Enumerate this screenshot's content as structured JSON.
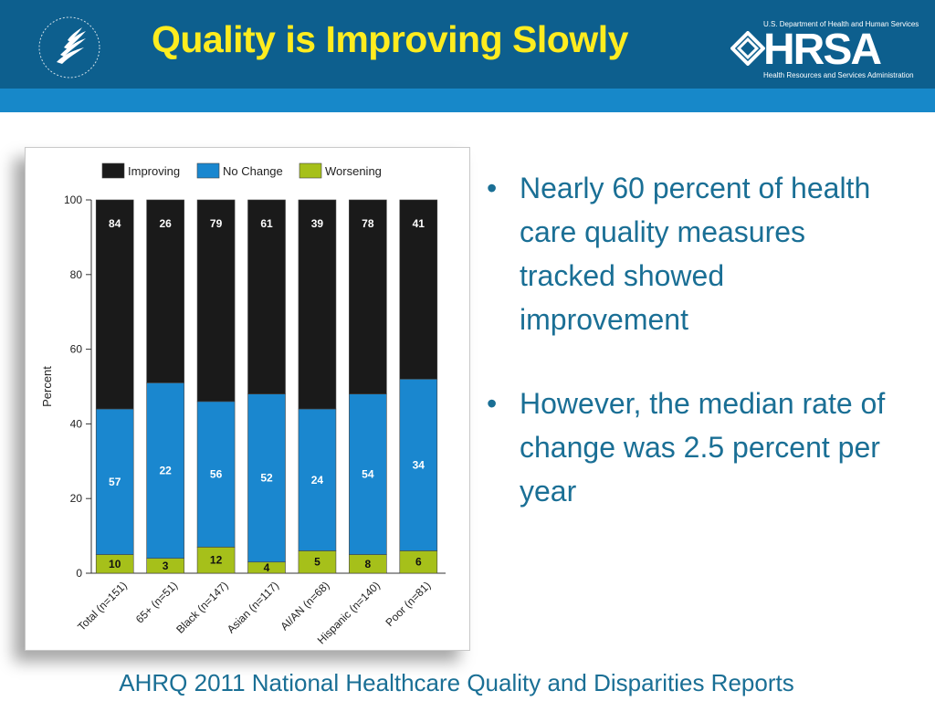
{
  "slide": {
    "title": "Quality is Improving Slowly",
    "hrsa": {
      "top_text": "U.S. Department of Health and Human Services",
      "name": "HRSA",
      "bottom_text": "Health Resources and Services Administration"
    },
    "bullets": [
      "Nearly 60 percent of health care quality measures tracked showed improvement",
      "However, the median rate of change was 2.5 percent per year"
    ],
    "footer": "AHRQ 2011 National Healthcare Quality and Disparities Reports",
    "bullet_glyph": "•"
  },
  "colors": {
    "header_dark": "#0d5f8e",
    "header_stripe": "#1788c9",
    "title": "#ffec1f",
    "text": "#1a6f95"
  },
  "chart_data": {
    "type": "bar",
    "stacked": true,
    "categories": [
      "Total (n=151)",
      "65+ (n=51)",
      "Black (n=147)",
      "Asian (n=117)",
      "AI/AN (n=68)",
      "Hispanic (n=140)",
      "Poor (n=81)"
    ],
    "series": [
      {
        "name": "Worsening",
        "color": "#a6c01a",
        "values": [
          5,
          4,
          7,
          3,
          6,
          5,
          6
        ],
        "labels": [
          "10",
          "3",
          "12",
          "4",
          "5",
          "8",
          "6"
        ]
      },
      {
        "name": "No Change",
        "color": "#1a87cf",
        "values": [
          39,
          47,
          39,
          45,
          38,
          43,
          46
        ],
        "labels": [
          "57",
          "22",
          "56",
          "52",
          "24",
          "54",
          "34"
        ]
      },
      {
        "name": "Improving",
        "color": "#1a1a1a",
        "values": [
          56,
          49,
          54,
          52,
          56,
          52,
          48
        ],
        "labels": [
          "84",
          "26",
          "79",
          "61",
          "39",
          "78",
          "41"
        ]
      }
    ],
    "legend_order": [
      "Improving",
      "No Change",
      "Worsening"
    ],
    "legend_position": "top",
    "ylabel": "Percent",
    "ylim": [
      0,
      100
    ],
    "yticks": [
      0,
      20,
      40,
      60,
      80,
      100
    ],
    "xtick_rotation": -45
  }
}
